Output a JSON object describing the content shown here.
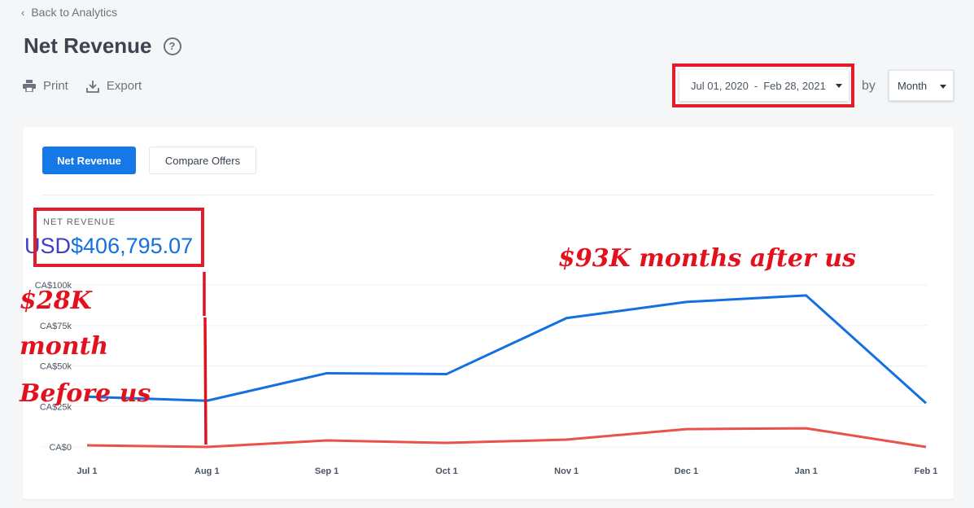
{
  "nav": {
    "back_label": "Back to Analytics"
  },
  "header": {
    "title": "Net Revenue",
    "help_glyph": "?"
  },
  "toolbar": {
    "print_label": "Print",
    "export_label": "Export"
  },
  "date_range": {
    "start": "Jul 01, 2020",
    "separator": "-",
    "end": "Feb 28, 2021"
  },
  "grouping": {
    "by_label": "by",
    "selected": "Month"
  },
  "tabs": [
    {
      "label": "Net Revenue",
      "active": true
    },
    {
      "label": "Compare Offers",
      "active": false
    }
  ],
  "summary": {
    "label": "NET REVENUE",
    "currency": "USD",
    "amount": "$406,795.07"
  },
  "annotations": {
    "before_line1": "$28K",
    "before_line2": "month",
    "before_line3": "Before us",
    "after": "$93K months after us"
  },
  "colors": {
    "accent": "#1478e6",
    "series_primary": "#1470e0",
    "series_secondary": "#e8524a",
    "annotation": "#e3111d"
  },
  "chart_data": {
    "type": "line",
    "categories": [
      "Jul 1",
      "Aug 1",
      "Sep 1",
      "Oct 1",
      "Nov 1",
      "Dec 1",
      "Jan 1",
      "Feb 1"
    ],
    "y_ticks": [
      "CA$0",
      "CA$25k",
      "CA$50k",
      "CA$75k",
      "CA$100k"
    ],
    "ylim": [
      0,
      100000
    ],
    "grid": true,
    "series": [
      {
        "values": [
          31000,
          28500,
          45500,
          45000,
          79500,
          89500,
          93500,
          27000
        ],
        "color": "#1470e0"
      },
      {
        "values": [
          1000,
          0,
          4000,
          2500,
          4500,
          11000,
          11500,
          0
        ],
        "color": "#e8524a"
      }
    ]
  }
}
